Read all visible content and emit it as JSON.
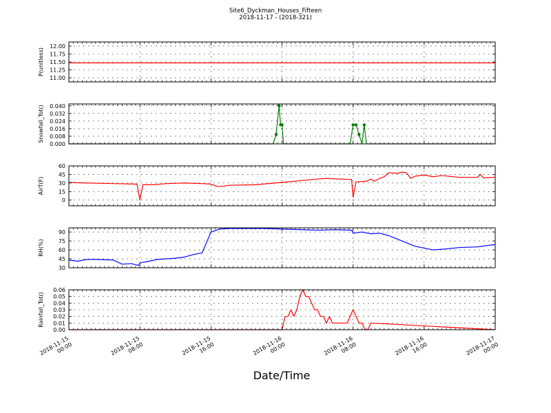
{
  "title": "Site6_Dyckman_Houses_Fifteen",
  "subtitle": "2018-11-17 - (2018-321)",
  "xlabel": "Date/Time",
  "x_ticks": [
    "2018-11-15 00:00",
    "2018-11-15 08:00",
    "2018-11-15 16:00",
    "2018-11-16 00:00",
    "2018-11-16 08:00",
    "2018-11-16 16:00",
    "2018-11-17 00:00"
  ],
  "x_range": [
    "2018-11-15 00:00",
    "2018-11-17 00:00"
  ],
  "colors": {
    "red": "#ff0000",
    "green": "#007f00",
    "blue": "#0000ff"
  },
  "chart_data": [
    {
      "type": "line",
      "ylabel": "P(unitless)",
      "ylim": [
        10.87,
        12.13
      ],
      "yticks": [
        11.0,
        11.25,
        11.5,
        11.75,
        12.0
      ],
      "ytick_labels": [
        "11.00",
        "11.25",
        "11.50",
        "11.75",
        "12.00"
      ],
      "grid": true,
      "color": "#ff0000",
      "markers": false,
      "series": [
        {
          "x": [
            "2018-11-15 00:00",
            "2018-11-17 00:00"
          ],
          "y": [
            11.47,
            11.47
          ]
        }
      ]
    },
    {
      "type": "line",
      "ylabel": "Snowfall_Tot()",
      "ylim": [
        0,
        0.042
      ],
      "yticks": [
        0,
        0.008,
        0.016,
        0.024,
        0.032,
        0.04
      ],
      "ytick_labels": [
        "0.000",
        "0.008",
        "0.016",
        "0.024",
        "0.032",
        "0.040"
      ],
      "grid": true,
      "color": "#007f00",
      "markers": true,
      "series": [
        {
          "x": [
            "2018-11-15 00:00",
            "2018-11-15 23:00",
            "2018-11-15 23:20",
            "2018-11-15 23:40",
            "2018-11-15 23:50",
            "2018-11-16 00:00",
            "2018-11-16 00:10",
            "2018-11-16 07:40",
            "2018-11-16 08:00",
            "2018-11-16 08:20",
            "2018-11-16 08:40",
            "2018-11-16 09:00",
            "2018-11-16 09:15",
            "2018-11-16 09:30",
            "2018-11-16 09:40",
            "2018-11-17 00:00"
          ],
          "y": [
            0,
            0,
            0.01,
            0.04,
            0.02,
            0.02,
            0,
            0,
            0.02,
            0.02,
            0.01,
            0,
            0.02,
            0,
            0,
            0
          ]
        }
      ]
    },
    {
      "type": "line",
      "ylabel": "AirT(F)",
      "ylim": [
        -10,
        60
      ],
      "yticks": [
        0,
        15,
        30,
        45,
        60
      ],
      "ytick_labels": [
        "0",
        "15",
        "30",
        "45",
        "60"
      ],
      "grid": true,
      "color": "#ff0000",
      "markers": false,
      "series": [
        {
          "x": [
            "2018-11-15 00:00",
            "2018-11-15 02:00",
            "2018-11-15 05:00",
            "2018-11-15 07:40",
            "2018-11-15 08:00",
            "2018-11-15 08:20",
            "2018-11-15 09:30",
            "2018-11-15 11:00",
            "2018-11-15 13:00",
            "2018-11-15 15:00",
            "2018-11-15 16:00",
            "2018-11-15 16:40",
            "2018-11-15 17:20",
            "2018-11-15 18:00",
            "2018-11-15 21:00",
            "2018-11-16 00:00",
            "2018-11-16 02:00",
            "2018-11-16 04:00",
            "2018-11-16 05:00",
            "2018-11-16 07:50",
            "2018-11-16 08:00",
            "2018-11-16 08:20",
            "2018-11-16 09:30",
            "2018-11-16 10:00",
            "2018-11-16 10:20",
            "2018-11-16 11:00",
            "2018-11-16 11:30",
            "2018-11-16 12:00",
            "2018-11-16 13:00",
            "2018-11-16 13:30",
            "2018-11-16 14:00",
            "2018-11-16 14:30",
            "2018-11-16 15:00",
            "2018-11-16 16:00",
            "2018-11-16 17:00",
            "2018-11-16 18:00",
            "2018-11-16 20:00",
            "2018-11-16 22:00",
            "2018-11-16 22:20",
            "2018-11-16 22:40",
            "2018-11-17 00:00"
          ],
          "y": [
            31,
            30,
            29,
            28,
            0,
            27,
            27,
            29,
            30,
            29,
            28,
            24,
            24,
            26,
            27,
            31,
            34,
            37,
            38,
            36,
            5,
            32,
            33,
            37,
            33,
            38,
            41,
            48,
            47,
            49,
            48,
            38,
            42,
            44,
            41,
            43,
            40,
            40,
            45,
            39,
            40
          ]
        }
      ]
    },
    {
      "type": "line",
      "ylabel": "RH(%)",
      "ylim": [
        30,
        97
      ],
      "yticks": [
        30,
        45,
        60,
        75,
        90
      ],
      "ytick_labels": [
        "30",
        "45",
        "60",
        "75",
        "90"
      ],
      "grid": true,
      "color": "#0000ff",
      "markers": false,
      "series": [
        {
          "x": [
            "2018-11-15 00:00",
            "2018-11-15 01:00",
            "2018-11-15 02:00",
            "2018-11-15 03:00",
            "2018-11-15 05:00",
            "2018-11-15 06:00",
            "2018-11-15 07:00",
            "2018-11-15 07:50",
            "2018-11-15 08:00",
            "2018-11-15 09:00",
            "2018-11-15 10:00",
            "2018-11-15 11:00",
            "2018-11-15 12:00",
            "2018-11-15 13:00",
            "2018-11-15 14:00",
            "2018-11-15 14:40",
            "2018-11-15 15:00",
            "2018-11-15 16:00",
            "2018-11-15 17:00",
            "2018-11-15 18:00",
            "2018-11-15 20:00",
            "2018-11-15 22:00",
            "2018-11-16 00:00",
            "2018-11-16 02:00",
            "2018-11-16 04:00",
            "2018-11-16 06:00",
            "2018-11-16 07:50",
            "2018-11-16 08:00",
            "2018-11-16 09:00",
            "2018-11-16 10:00",
            "2018-11-16 11:00",
            "2018-11-16 12:00",
            "2018-11-16 13:00",
            "2018-11-16 14:00",
            "2018-11-16 15:00",
            "2018-11-16 16:00",
            "2018-11-16 17:00",
            "2018-11-16 18:00",
            "2018-11-16 20:00",
            "2018-11-16 22:00",
            "2018-11-17 00:00"
          ],
          "y": [
            43,
            41,
            44,
            44,
            43,
            36,
            37,
            34,
            38,
            41,
            44,
            45,
            46,
            48,
            52,
            54,
            55,
            90,
            95,
            96,
            96,
            96,
            95,
            94,
            93,
            94,
            93,
            88,
            90,
            87,
            88,
            84,
            78,
            72,
            66,
            63,
            60,
            61,
            64,
            65,
            69
          ]
        }
      ]
    },
    {
      "type": "line",
      "ylabel": "Rainfall_Tot()",
      "ylim": [
        0,
        0.06
      ],
      "yticks": [
        0,
        0.01,
        0.02,
        0.03,
        0.04,
        0.05,
        0.06
      ],
      "ytick_labels": [
        "0.00",
        "0.01",
        "0.02",
        "0.03",
        "0.04",
        "0.05",
        "0.06"
      ],
      "grid": true,
      "color": "#ff0000",
      "markers": false,
      "series": [
        {
          "x": [
            "2018-11-15 00:00",
            "2018-11-16 00:00",
            "2018-11-16 00:20",
            "2018-11-16 00:40",
            "2018-11-16 01:00",
            "2018-11-16 01:20",
            "2018-11-16 01:40",
            "2018-11-16 02:00",
            "2018-11-16 02:20",
            "2018-11-16 02:40",
            "2018-11-16 03:00",
            "2018-11-16 03:20",
            "2018-11-16 03:40",
            "2018-11-16 04:00",
            "2018-11-16 04:20",
            "2018-11-16 04:40",
            "2018-11-16 05:00",
            "2018-11-16 05:20",
            "2018-11-16 05:40",
            "2018-11-16 06:00",
            "2018-11-16 06:20",
            "2018-11-16 06:40",
            "2018-11-16 07:00",
            "2018-11-16 07:20",
            "2018-11-16 07:40",
            "2018-11-16 08:00",
            "2018-11-16 08:20",
            "2018-11-16 08:40",
            "2018-11-16 09:00",
            "2018-11-16 09:20",
            "2018-11-16 09:40",
            "2018-11-16 10:00",
            "2018-11-17 00:00"
          ],
          "y": [
            0,
            0,
            0.02,
            0.02,
            0.03,
            0.02,
            0.03,
            0.05,
            0.06,
            0.05,
            0.05,
            0.04,
            0.03,
            0.03,
            0.02,
            0.02,
            0.01,
            0.02,
            0.01,
            0.01,
            0.01,
            0.01,
            0.01,
            0.01,
            0.02,
            0.03,
            0.02,
            0.01,
            0.01,
            0,
            0,
            0.01,
            0
          ]
        }
      ]
    }
  ]
}
